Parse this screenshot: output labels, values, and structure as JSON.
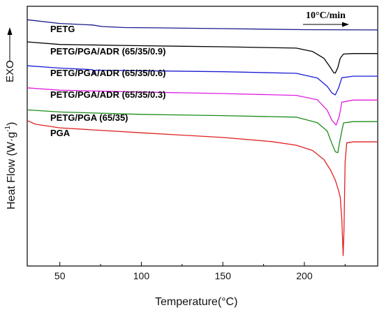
{
  "chart_data": {
    "type": "line",
    "xlabel_main": "Temperature(",
    "xlabel_unit": "°C",
    "xlabel_close": ")",
    "ylabel_main": "Heat Flow (W·g",
    "ylabel_sup": "-1",
    "ylabel_close": ")",
    "exo_label": "EXO",
    "rate_annotation": "10°C/min",
    "xlim": [
      30,
      245
    ],
    "x_ticks": [
      50,
      100,
      150,
      200
    ],
    "y_ticks_shown": false,
    "ylim": [
      0,
      100
    ],
    "series": [
      {
        "name": "PETG",
        "color": "#1a1a8c",
        "points": [
          [
            30,
            94.8
          ],
          [
            50,
            93.4
          ],
          [
            70,
            92.8
          ],
          [
            76,
            92.2
          ],
          [
            90,
            91.8
          ],
          [
            110,
            91.7
          ],
          [
            150,
            91.4
          ],
          [
            200,
            91.0
          ],
          [
            245,
            90.9
          ]
        ]
      },
      {
        "name": "PETG/PGA/ADR (65/35/0.9)",
        "color": "#000000",
        "points": [
          [
            30,
            86.3
          ],
          [
            50,
            85.3
          ],
          [
            100,
            84.8
          ],
          [
            150,
            84.4
          ],
          [
            195,
            83.9
          ],
          [
            205,
            82.6
          ],
          [
            212,
            80.0
          ],
          [
            216,
            76.4
          ],
          [
            218,
            74.4
          ],
          [
            219,
            74.3
          ],
          [
            220.5,
            76.4
          ],
          [
            222,
            80.0
          ],
          [
            224,
            81.6
          ],
          [
            230,
            81.8
          ],
          [
            245,
            81.8
          ]
        ]
      },
      {
        "name": "PETG/PGA/ADR (65/35/0.6)",
        "color": "#1c1cd4",
        "points": [
          [
            30,
            77.1
          ],
          [
            50,
            76.2
          ],
          [
            70,
            75.6
          ],
          [
            71,
            74.2
          ],
          [
            72,
            75.4
          ],
          [
            100,
            75.2
          ],
          [
            150,
            74.8
          ],
          [
            195,
            74.2
          ],
          [
            208,
            72.4
          ],
          [
            214,
            69.2
          ],
          [
            217,
            66.6
          ],
          [
            219,
            65.9
          ],
          [
            221,
            68.6
          ],
          [
            223,
            72.5
          ],
          [
            230,
            73.1
          ],
          [
            245,
            73.1
          ]
        ]
      },
      {
        "name": "PETG/PGA/ADR (65/35/0.3)",
        "color": "#e01ee0",
        "points": [
          [
            30,
            68.6
          ],
          [
            50,
            67.7
          ],
          [
            100,
            67.0
          ],
          [
            150,
            66.4
          ],
          [
            195,
            65.7
          ],
          [
            208,
            64.0
          ],
          [
            214,
            60.0
          ],
          [
            217,
            56.0
          ],
          [
            219.5,
            54.3
          ],
          [
            221.5,
            57.8
          ],
          [
            223,
            63.1
          ],
          [
            230,
            63.9
          ],
          [
            245,
            63.9
          ]
        ]
      },
      {
        "name": "PETG/PGA (65/35)",
        "color": "#1a8c1a",
        "points": [
          [
            30,
            60.1
          ],
          [
            50,
            59.3
          ],
          [
            100,
            58.4
          ],
          [
            150,
            57.9
          ],
          [
            195,
            57.3
          ],
          [
            208,
            55.2
          ],
          [
            214,
            52.0
          ],
          [
            217,
            47.0
          ],
          [
            219,
            44.0
          ],
          [
            220.5,
            43.6
          ],
          [
            222,
            48.9
          ],
          [
            224,
            55.1
          ],
          [
            230,
            55.6
          ],
          [
            245,
            55.6
          ]
        ]
      },
      {
        "name": "PGA",
        "color": "#e02020",
        "points": [
          [
            30,
            56.0
          ],
          [
            35,
            54.6
          ],
          [
            50,
            53.2
          ],
          [
            100,
            51.3
          ],
          [
            150,
            49.5
          ],
          [
            180,
            47.9
          ],
          [
            195,
            46.5
          ],
          [
            205,
            44.5
          ],
          [
            212,
            41.0
          ],
          [
            216,
            37.0
          ],
          [
            219,
            33.0
          ],
          [
            221,
            29.0
          ],
          [
            222,
            26.5
          ],
          [
            223,
            18.0
          ],
          [
            223.8,
            4.0
          ],
          [
            224.3,
            14.0
          ],
          [
            225,
            40.0
          ],
          [
            226,
            47.4
          ],
          [
            230,
            47.8
          ],
          [
            245,
            47.8
          ]
        ]
      }
    ]
  }
}
